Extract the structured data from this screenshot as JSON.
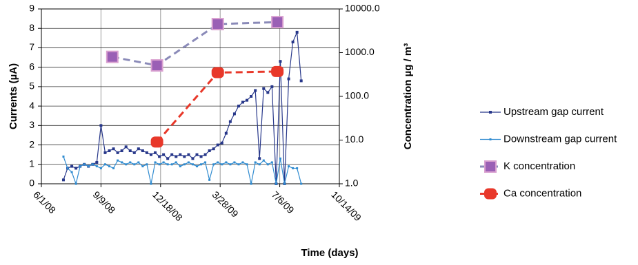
{
  "chart_data": {
    "type": "line",
    "xlabel": "Time (days)",
    "ylabel": "Currents (µA)",
    "y2label": "Concentration µg / m³",
    "xlim": [
      "2008-06-01",
      "2009-10-14"
    ],
    "xticks": [
      {
        "value": "2008-06-01",
        "label": "6/1/08"
      },
      {
        "value": "2008-09-09",
        "label": "9/9/08"
      },
      {
        "value": "2008-12-18",
        "label": "12/18/08"
      },
      {
        "value": "2009-03-28",
        "label": "3/28/09"
      },
      {
        "value": "2009-07-06",
        "label": "7/6/09"
      },
      {
        "value": "2009-10-14",
        "label": "10/14/09"
      }
    ],
    "ylim": [
      0,
      9
    ],
    "yticks": [
      0,
      1,
      2,
      3,
      4,
      5,
      6,
      7,
      8,
      9
    ],
    "y2lim": [
      1,
      10000
    ],
    "y2log": true,
    "y2ticks": [
      {
        "value": 1,
        "label": "1.0"
      },
      {
        "value": 10,
        "label": "10.0"
      },
      {
        "value": 100,
        "label": "100.0"
      },
      {
        "value": 1000,
        "label": "1000.0"
      },
      {
        "value": 10000,
        "label": "10000.0"
      }
    ],
    "grid": true,
    "x": [
      "2008-07-08",
      "2008-07-15",
      "2008-07-22",
      "2008-07-29",
      "2008-08-05",
      "2008-08-12",
      "2008-08-19",
      "2008-08-26",
      "2008-09-02",
      "2008-09-09",
      "2008-09-16",
      "2008-09-23",
      "2008-09-30",
      "2008-10-07",
      "2008-10-14",
      "2008-10-21",
      "2008-10-28",
      "2008-11-04",
      "2008-11-11",
      "2008-11-18",
      "2008-11-25",
      "2008-12-02",
      "2008-12-09",
      "2008-12-16",
      "2008-12-23",
      "2008-12-30",
      "2009-01-06",
      "2009-01-13",
      "2009-01-20",
      "2009-01-27",
      "2009-02-03",
      "2009-02-10",
      "2009-02-17",
      "2009-02-24",
      "2009-03-03",
      "2009-03-10",
      "2009-03-17",
      "2009-03-24",
      "2009-03-31",
      "2009-04-07",
      "2009-04-14",
      "2009-04-21",
      "2009-04-28",
      "2009-05-05",
      "2009-05-12",
      "2009-05-19",
      "2009-05-26",
      "2009-06-02",
      "2009-06-09",
      "2009-06-16",
      "2009-06-23",
      "2009-06-30",
      "2009-07-07",
      "2009-07-14",
      "2009-07-21",
      "2009-07-28",
      "2009-08-04",
      "2009-08-11"
    ],
    "series": [
      {
        "name": "Upstream gap current",
        "color": "#27378a",
        "marker": "square",
        "values": [
          0.2,
          0.8,
          0.9,
          0.8,
          0.9,
          1.0,
          0.9,
          1.0,
          1.1,
          3.0,
          1.6,
          1.7,
          1.8,
          1.6,
          1.7,
          1.9,
          1.7,
          1.6,
          1.8,
          1.7,
          1.6,
          1.5,
          1.6,
          1.4,
          1.5,
          1.3,
          1.5,
          1.4,
          1.5,
          1.4,
          1.5,
          1.3,
          1.5,
          1.4,
          1.5,
          1.7,
          1.8,
          2.0,
          2.1,
          2.6,
          3.2,
          3.6,
          4.0,
          4.2,
          4.3,
          4.5,
          4.8,
          1.3,
          4.9,
          4.7,
          5.0,
          0,
          6.3,
          0,
          5.4,
          7.3,
          7.8,
          5.3
        ]
      },
      {
        "name": "Downstream gap current",
        "color": "#2f8bd0",
        "marker": "dot",
        "values": [
          1.4,
          0.8,
          0.6,
          0,
          0.9,
          1.0,
          0.9,
          1.0,
          0.9,
          0.8,
          1.0,
          0.9,
          0.8,
          1.2,
          1.1,
          1.0,
          1.1,
          1.0,
          1.1,
          0.9,
          1.0,
          0,
          1.1,
          1.0,
          1.1,
          1.0,
          1.0,
          1.1,
          0.9,
          1.0,
          1.1,
          1.0,
          0.9,
          1.0,
          1.1,
          0.2,
          1.0,
          1.1,
          1.0,
          1.1,
          1.0,
          1.1,
          1.0,
          1.1,
          1.0,
          0,
          1.1,
          1.0,
          1.2,
          1.0,
          1.1,
          0,
          1.3,
          0,
          0.9,
          0.8,
          0.8,
          0
        ]
      },
      {
        "name": "K concentration",
        "color": "#8a8ab8",
        "marker": "big-square",
        "markerColor": "#9a5fb5",
        "dashed": true,
        "axis": "y2",
        "x": [
          "2008-09-28",
          "2008-12-12",
          "2009-03-24",
          "2009-07-02"
        ],
        "values": [
          800,
          510,
          4500,
          5000
        ]
      },
      {
        "name": "Ca concentration",
        "color": "#e8382a",
        "marker": "big-round",
        "markerColor": "#e8382a",
        "dashed": true,
        "axis": "y2",
        "x": [
          "2008-12-12",
          "2009-03-24",
          "2009-07-02"
        ],
        "values": [
          9,
          350,
          370
        ]
      }
    ]
  }
}
